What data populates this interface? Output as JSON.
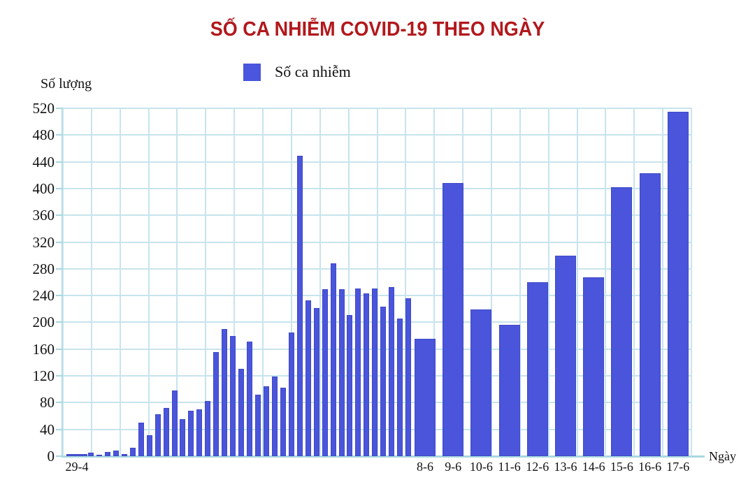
{
  "title": {
    "text": "SỐ CA NHIỄM COVID-19 THEO NGÀY",
    "color": "#B2181C"
  },
  "legend": {
    "label": "Số ca nhiễm",
    "swatch_color": "#4956DD"
  },
  "axes": {
    "y_label": "Số lượng",
    "x_label": "Ngày"
  },
  "colors": {
    "bar": "#4A55DC",
    "bar_edge": "#3F49C4",
    "grid": "#C7E4EC",
    "axis": "#A8D7E0",
    "text": "#111111"
  },
  "chart_data": {
    "type": "bar",
    "title": "SỐ CA NHIỄM COVID-19 THEO NGÀY",
    "ylabel": "Số lượng",
    "xlabel": "Ngày",
    "ylim": [
      0,
      520
    ],
    "yticks": [
      0,
      40,
      80,
      120,
      160,
      200,
      240,
      280,
      320,
      360,
      400,
      440,
      480,
      520
    ],
    "grid": true,
    "legend_position": "top",
    "series_name": "Số ca nhiễm",
    "bars": [
      {
        "label": "29-4",
        "value": 3,
        "kind": "flat"
      },
      {
        "value": 5,
        "kind": "thin"
      },
      {
        "value": 2,
        "kind": "thin"
      },
      {
        "value": 6,
        "kind": "thin"
      },
      {
        "value": 8,
        "kind": "thin"
      },
      {
        "value": 3,
        "kind": "thin"
      },
      {
        "value": 13,
        "kind": "thin"
      },
      {
        "value": 50,
        "kind": "thin"
      },
      {
        "value": 31,
        "kind": "thin"
      },
      {
        "value": 63,
        "kind": "thin"
      },
      {
        "value": 72,
        "kind": "thin"
      },
      {
        "value": 98,
        "kind": "thin"
      },
      {
        "value": 55,
        "kind": "thin"
      },
      {
        "value": 68,
        "kind": "thin"
      },
      {
        "value": 70,
        "kind": "thin"
      },
      {
        "value": 82,
        "kind": "thin"
      },
      {
        "value": 156,
        "kind": "thin"
      },
      {
        "value": 190,
        "kind": "thin"
      },
      {
        "value": 180,
        "kind": "thin"
      },
      {
        "value": 131,
        "kind": "thin"
      },
      {
        "value": 171,
        "kind": "thin"
      },
      {
        "value": 92,
        "kind": "thin"
      },
      {
        "value": 104,
        "kind": "thin"
      },
      {
        "value": 119,
        "kind": "thin"
      },
      {
        "value": 102,
        "kind": "thin"
      },
      {
        "value": 185,
        "kind": "thin"
      },
      {
        "value": 449,
        "kind": "thin"
      },
      {
        "value": 233,
        "kind": "thin"
      },
      {
        "value": 221,
        "kind": "thin"
      },
      {
        "value": 250,
        "kind": "thin"
      },
      {
        "value": 288,
        "kind": "thin"
      },
      {
        "value": 250,
        "kind": "thin"
      },
      {
        "value": 211,
        "kind": "thin"
      },
      {
        "value": 251,
        "kind": "thin"
      },
      {
        "value": 243,
        "kind": "thin"
      },
      {
        "value": 251,
        "kind": "thin"
      },
      {
        "value": 223,
        "kind": "thin"
      },
      {
        "value": 253,
        "kind": "thin"
      },
      {
        "value": 206,
        "kind": "thin"
      },
      {
        "value": 236,
        "kind": "thin"
      },
      {
        "label": "8-6",
        "value": 175,
        "kind": "wide"
      },
      {
        "label": "9-6",
        "value": 408,
        "kind": "wide"
      },
      {
        "label": "10-6",
        "value": 219,
        "kind": "wide"
      },
      {
        "label": "11-6",
        "value": 196,
        "kind": "wide"
      },
      {
        "label": "12-6",
        "value": 260,
        "kind": "wide"
      },
      {
        "label": "13-6",
        "value": 300,
        "kind": "wide"
      },
      {
        "label": "14-6",
        "value": 267,
        "kind": "wide"
      },
      {
        "label": "15-6",
        "value": 402,
        "kind": "wide"
      },
      {
        "label": "16-6",
        "value": 423,
        "kind": "wide"
      },
      {
        "label": "17-6",
        "value": 515,
        "kind": "wide"
      }
    ]
  }
}
